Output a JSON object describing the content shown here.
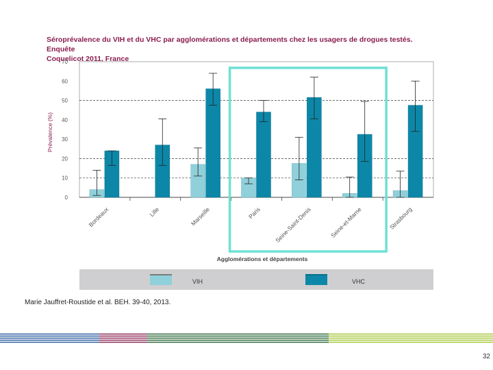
{
  "title": {
    "line1": "Séroprévalence du VIH et du VHC par agglomérations et départements chez les usagers de drogues testés. Enquête",
    "line2": "Coquelicot 2011, France"
  },
  "citation": "Marie Jauffret-Roustide et al. BEH. 39-40, 2013.",
  "page_number": "32",
  "colors": {
    "vih": "#8fd0da",
    "vhc": "#0d87a8",
    "highlight": "#6ee0d6",
    "footer_green": "#2f6a3c",
    "footer_blue": "#2c5fa0",
    "footer_purple": "#8c2a58",
    "footer_lime": "#a6c83a"
  },
  "chart_data": {
    "type": "bar",
    "title": "Séroprévalence du VIH et du VHC par agglomérations et départements chez les usagers de drogues testés. Enquête Coquelicot 2011, France",
    "xlabel": "Agglomérations et départements",
    "ylabel": "Prévalence (%)",
    "ylim": [
      0,
      70
    ],
    "yticks": [
      0,
      10,
      20,
      30,
      40,
      50,
      60,
      70
    ],
    "grid": "dashed at 10, 20, 50",
    "categories": [
      "Bordeaux",
      "Lille",
      "Marseille",
      "Paris",
      "Seine-Saint-Denis",
      "Seine-et-Marne",
      "Strasbourg"
    ],
    "highlighted_categories": [
      "Paris",
      "Seine-Saint-Denis",
      "Seine-et-Marne"
    ],
    "legend_position": "bottom",
    "series": [
      {
        "name": "VIH",
        "values": [
          4,
          0,
          17,
          10,
          17.5,
          2,
          3.5
        ],
        "ci_low": [
          1,
          null,
          11,
          7,
          9,
          0,
          0
        ],
        "ci_high": [
          14,
          null,
          25.5,
          10,
          31,
          10.5,
          13.5
        ]
      },
      {
        "name": "VHC",
        "values": [
          24,
          27,
          56,
          44,
          51.5,
          32.5,
          47.5
        ],
        "ci_low": [
          16.5,
          16.5,
          47.5,
          39,
          40.5,
          18.5,
          34
        ],
        "ci_high": [
          24,
          40.5,
          64,
          50,
          62,
          49.5,
          60
        ]
      }
    ]
  }
}
